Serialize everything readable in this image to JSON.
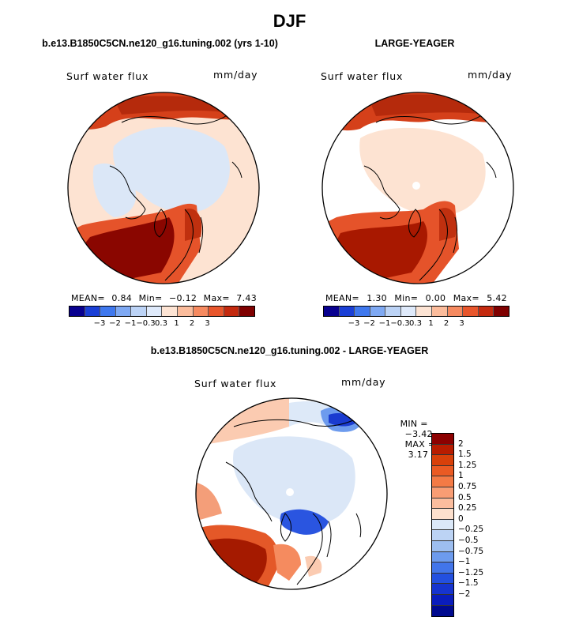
{
  "title": "DJF",
  "panels": [
    {
      "title": "b.e13.B1850C5CN.ne120_g16.tuning.002 (yrs 1-10)",
      "variable": "Surf water flux",
      "units": "mm/day",
      "stats": {
        "mean_label": "MEAN=",
        "mean": "0.84",
        "min_label": "Min=",
        "min": "−0.12",
        "max_label": "Max=",
        "max": "7.43"
      }
    },
    {
      "title": "LARGE-YEAGER",
      "variable": "Surf water flux",
      "units": "mm/day",
      "stats": {
        "mean_label": "MEAN=",
        "mean": "1.30",
        "min_label": "Min=",
        "min": "0.00",
        "max_label": "Max=",
        "max": "5.42"
      }
    }
  ],
  "colorbar_top": {
    "colors": [
      "#08008f",
      "#1a3fd6",
      "#3f78ee",
      "#7fa9f3",
      "#bcd3f6",
      "#dfeafb",
      "#fde4d4",
      "#fbbc9c",
      "#f68a60",
      "#e8562c",
      "#c42a0f",
      "#7f0000"
    ],
    "labels": [
      "−3",
      "−2",
      "−1",
      "−0.3",
      "0.3",
      "1",
      "2",
      "3"
    ]
  },
  "diff_panel": {
    "title": "b.e13.B1850C5CN.ne120_g16.tuning.002 - LARGE-YEAGER",
    "variable": "Surf water flux",
    "units": "mm/day",
    "min_label": "MIN =",
    "min": "−3.42",
    "max_label": "MAX =",
    "max": "3.17"
  },
  "colorbar_diff": {
    "colors": [
      "#8c0000",
      "#b81c00",
      "#d8400a",
      "#ea5a23",
      "#f47a45",
      "#f99d74",
      "#fbbd9e",
      "#fde0cd",
      "#dbe8f8",
      "#bcd3f4",
      "#9dbef0",
      "#6d9bee",
      "#4275ea",
      "#2350e0",
      "#1634cf",
      "#0a1dbc",
      "#000a8f"
    ],
    "labels": [
      "2",
      "1.5",
      "1.25",
      "1",
      "0.75",
      "0.5",
      "0.25",
      "0",
      "−0.25",
      "−0.5",
      "−0.75",
      "−1",
      "−1.25",
      "−1.5",
      "−2"
    ]
  }
}
